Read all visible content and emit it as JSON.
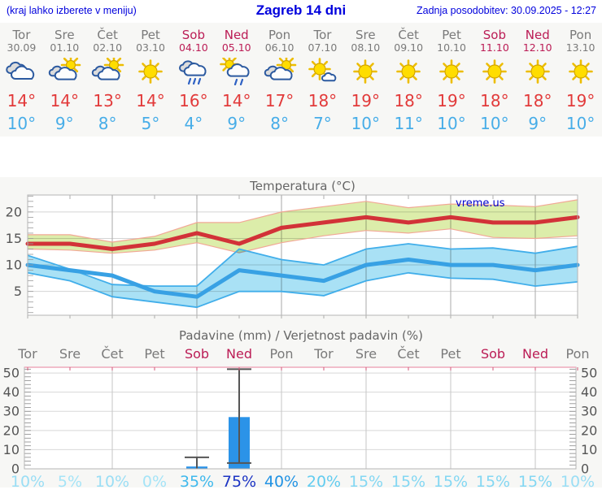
{
  "header": {
    "hint": "(kraj lahko izberete v meniju)",
    "title": "Zagreb 14 dni",
    "updated": "Zadnja posodobitev: 30.09.2025 - 12:27"
  },
  "colors": {
    "header_blue": "#0000dd",
    "weekday_gray": "#7a7a7a",
    "weekend_red": "#bb1c55",
    "tmax_red": "#e23a3a",
    "tmin_blue": "#47ade8",
    "figure_bg": "#f7f7f5",
    "plot_bg": "#ffffff"
  },
  "forecast": {
    "days": [
      {
        "name": "Tor",
        "date": "30.09",
        "icon": "cloudy",
        "tmax": "14°",
        "tmin": "10°",
        "weekend": false
      },
      {
        "name": "Sre",
        "date": "01.10",
        "icon": "partly-cloudy",
        "tmax": "14°",
        "tmin": "9°",
        "weekend": false
      },
      {
        "name": "Čet",
        "date": "02.10",
        "icon": "partly-cloudy",
        "tmax": "13°",
        "tmin": "8°",
        "weekend": false
      },
      {
        "name": "Pet",
        "date": "03.10",
        "icon": "sunny",
        "tmax": "14°",
        "tmin": "5°",
        "weekend": false
      },
      {
        "name": "Sob",
        "date": "04.10",
        "icon": "rain",
        "tmax": "16°",
        "tmin": "4°",
        "weekend": true
      },
      {
        "name": "Ned",
        "date": "05.10",
        "icon": "sun-rain",
        "tmax": "14°",
        "tmin": "9°",
        "weekend": true
      },
      {
        "name": "Pon",
        "date": "06.10",
        "icon": "partly-cloudy",
        "tmax": "17°",
        "tmin": "8°",
        "weekend": false
      },
      {
        "name": "Tor",
        "date": "07.10",
        "icon": "mostly-sunny",
        "tmax": "18°",
        "tmin": "7°",
        "weekend": false
      },
      {
        "name": "Sre",
        "date": "08.10",
        "icon": "sunny",
        "tmax": "19°",
        "tmin": "10°",
        "weekend": false
      },
      {
        "name": "Čet",
        "date": "09.10",
        "icon": "sunny",
        "tmax": "18°",
        "tmin": "11°",
        "weekend": false
      },
      {
        "name": "Pet",
        "date": "10.10",
        "icon": "sunny",
        "tmax": "19°",
        "tmin": "10°",
        "weekend": false
      },
      {
        "name": "Sob",
        "date": "11.10",
        "icon": "sunny",
        "tmax": "18°",
        "tmin": "10°",
        "weekend": true
      },
      {
        "name": "Ned",
        "date": "12.10",
        "icon": "sunny",
        "tmax": "18°",
        "tmin": "9°",
        "weekend": true
      },
      {
        "name": "Pon",
        "date": "13.10",
        "icon": "sunny",
        "tmax": "19°",
        "tmin": "10°",
        "weekend": false
      }
    ]
  },
  "chart_data": [
    {
      "type": "line",
      "title": "Temperatura (°C)",
      "watermark": "vreme.us",
      "x_count": 14,
      "ylim": [
        0.5,
        23.2
      ],
      "yticks": [
        5,
        10,
        15,
        20
      ],
      "grid_x_indices": [
        2,
        4,
        6,
        8,
        10,
        12
      ],
      "series": [
        {
          "name": "temp-max-range",
          "kind": "band",
          "fill": "#dcedaa",
          "edge": "#f2a896",
          "edge_width": 1.2,
          "upper": [
            15.7,
            15.7,
            14.3,
            15.4,
            18,
            18,
            20,
            21,
            22,
            20.8,
            21.5,
            21.3,
            21,
            22.3
          ],
          "lower": [
            13,
            12.8,
            12.2,
            12.8,
            14.2,
            12.3,
            14.2,
            15.5,
            16.5,
            16,
            16.8,
            15.2,
            15,
            15.5
          ]
        },
        {
          "name": "temp-min-range",
          "kind": "band",
          "fill": "#a9e1f5",
          "edge": "#41aeea",
          "edge_width": 1.8,
          "upper": [
            11.8,
            9.2,
            6.3,
            6,
            6,
            13,
            11,
            10,
            13,
            14,
            13,
            13.2,
            12.2,
            13.5
          ],
          "lower": [
            8.5,
            7,
            4,
            3,
            2,
            5,
            5,
            4.2,
            7,
            8.5,
            7.5,
            7.3,
            6,
            6.8
          ]
        },
        {
          "name": "temp-max",
          "kind": "line",
          "color": "#d23238",
          "width": 5,
          "values": [
            14,
            14,
            13,
            14,
            16,
            14,
            17,
            18,
            19,
            18,
            19,
            18,
            18,
            19
          ]
        },
        {
          "name": "temp-min",
          "kind": "line",
          "color": "#38a1e4",
          "width": 5,
          "values": [
            10,
            9,
            8,
            5,
            4,
            9,
            8,
            7,
            10,
            11,
            10,
            10,
            9,
            10
          ]
        }
      ]
    },
    {
      "type": "bar",
      "title": "Padavine (mm) / Verjetnost padavin (%)",
      "ylim": [
        0,
        53
      ],
      "yticks": [
        0,
        10,
        20,
        30,
        40,
        50
      ],
      "grid_x_indices": [
        2,
        4,
        6,
        8,
        10,
        12
      ],
      "day_labels": [
        "Tor",
        "Sre",
        "Čet",
        "Pet",
        "Sob",
        "Ned",
        "Pon",
        "Tor",
        "Sre",
        "Čet",
        "Pet",
        "Sob",
        "Ned",
        "Pon"
      ],
      "weekend_indices": [
        4,
        5,
        11,
        12
      ],
      "values": [
        0,
        0,
        0,
        0,
        1.2,
        27,
        0,
        0,
        0,
        0,
        0,
        0,
        0,
        0
      ],
      "whiskers": [
        {
          "index": 4,
          "low": 0,
          "high": 6
        },
        {
          "index": 5,
          "low": 3,
          "high": 52
        }
      ],
      "probabilities": [
        "10%",
        "5%",
        "10%",
        "0%",
        "35%",
        "75%",
        "40%",
        "20%",
        "15%",
        "15%",
        "15%",
        "15%",
        "15%",
        "10%"
      ],
      "prob_colors": [
        "#9adef5",
        "#a5e4f7",
        "#9adef5",
        "#a5e4f7",
        "#3fb9ed",
        "#1c34c4",
        "#2293e4",
        "#62ccf0",
        "#83d7f3",
        "#83d7f3",
        "#83d7f3",
        "#83d7f3",
        "#83d7f3",
        "#9adef5"
      ],
      "bar_color": "#2b93e8",
      "whisker_color": "#555555",
      "top_axis_color": "#eeaabb",
      "top_tick_color": "#d05878"
    }
  ]
}
